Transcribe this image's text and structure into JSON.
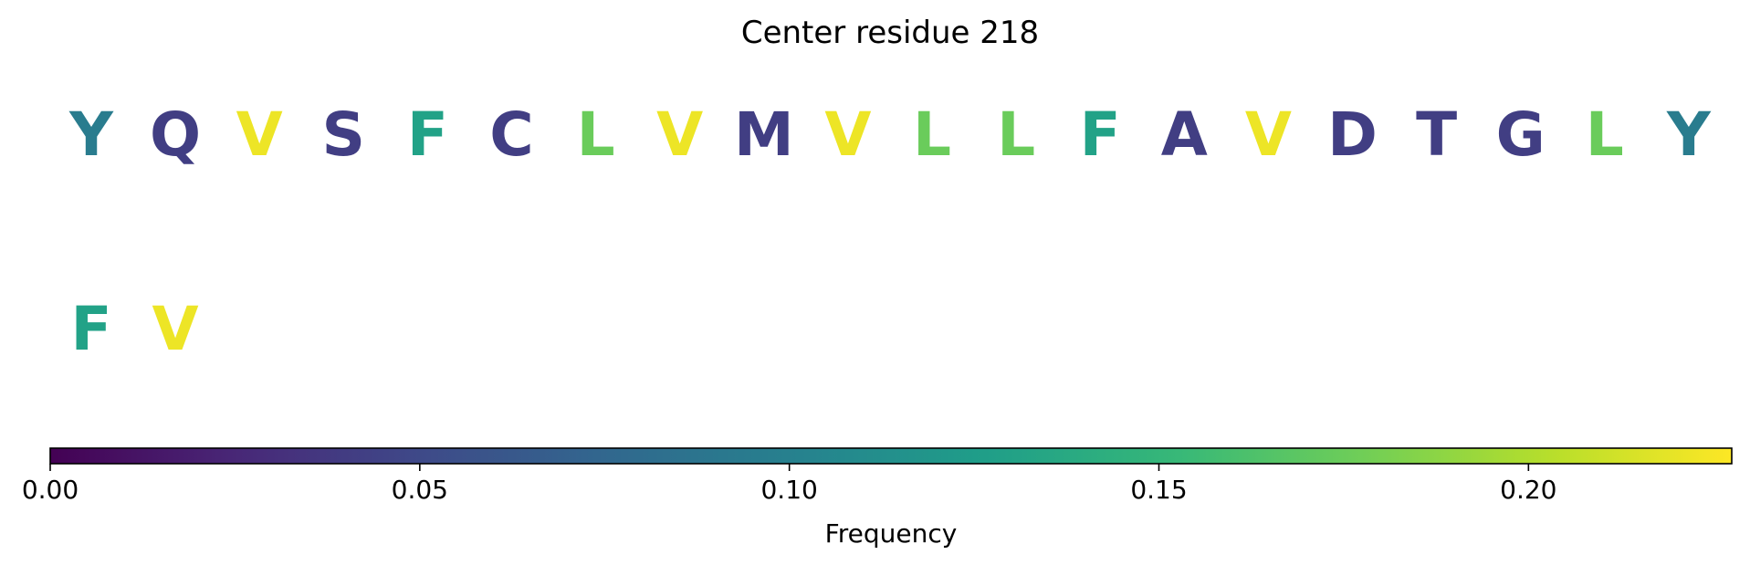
{
  "chart_data": {
    "type": "other",
    "title": "Center residue 218",
    "rows": [
      {
        "residues": [
          {
            "letter": "Y",
            "frequency": 0.095
          },
          {
            "letter": "Q",
            "frequency": 0.042
          },
          {
            "letter": "V",
            "frequency": 0.222
          },
          {
            "letter": "S",
            "frequency": 0.042
          },
          {
            "letter": "F",
            "frequency": 0.13
          },
          {
            "letter": "C",
            "frequency": 0.042
          },
          {
            "letter": "L",
            "frequency": 0.175
          },
          {
            "letter": "V",
            "frequency": 0.222
          },
          {
            "letter": "M",
            "frequency": 0.042
          },
          {
            "letter": "V",
            "frequency": 0.222
          },
          {
            "letter": "L",
            "frequency": 0.175
          },
          {
            "letter": "L",
            "frequency": 0.175
          },
          {
            "letter": "F",
            "frequency": 0.13
          },
          {
            "letter": "A",
            "frequency": 0.042
          },
          {
            "letter": "V",
            "frequency": 0.222
          },
          {
            "letter": "D",
            "frequency": 0.042
          },
          {
            "letter": "T",
            "frequency": 0.042
          },
          {
            "letter": "G",
            "frequency": 0.042
          },
          {
            "letter": "L",
            "frequency": 0.175
          },
          {
            "letter": "Y",
            "frequency": 0.095
          }
        ]
      },
      {
        "residues": [
          {
            "letter": "F",
            "frequency": 0.13
          },
          {
            "letter": "V",
            "frequency": 0.222
          }
        ]
      }
    ],
    "colorbar": {
      "colormap": "viridis",
      "range": [
        0,
        0.2275
      ],
      "ticks": [
        0.0,
        0.05,
        0.1,
        0.15,
        0.2
      ],
      "tick_labels": [
        "0.00",
        "0.05",
        "0.10",
        "0.15",
        "0.20"
      ],
      "label": "Frequency",
      "orientation": "horizontal",
      "placement": "bottom"
    }
  }
}
